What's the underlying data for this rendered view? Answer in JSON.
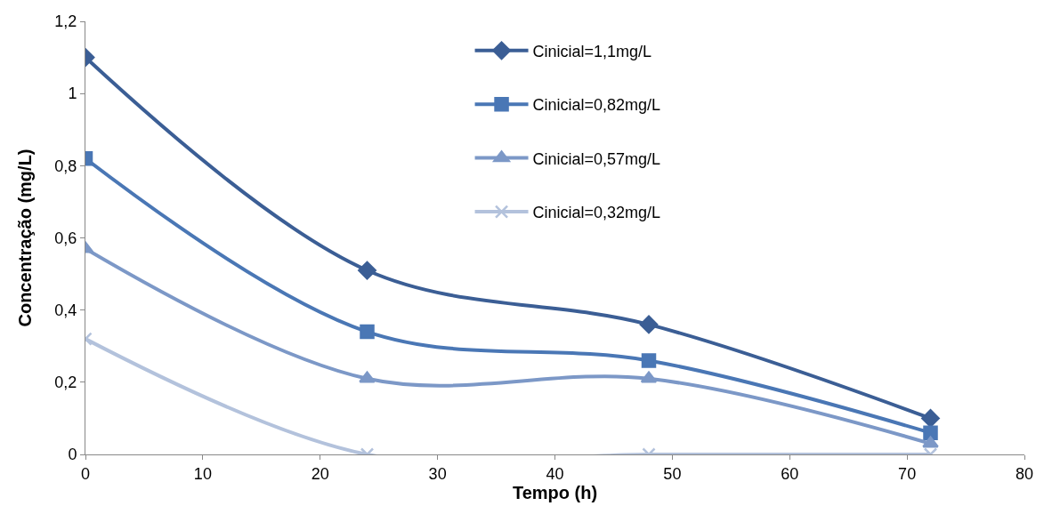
{
  "chart_data": {
    "type": "line",
    "xlabel": "Tempo (h)",
    "ylabel": "Concentração (mg/L)",
    "x": [
      0,
      24,
      48,
      72
    ],
    "series": [
      {
        "name": "Cinicial=1,1mg/L",
        "color": "#3b5e95",
        "marker": "diamond",
        "values": [
          1.1,
          0.51,
          0.36,
          0.1
        ]
      },
      {
        "name": "Cinicial=0,82mg/L",
        "color": "#4a77b5",
        "marker": "square",
        "values": [
          0.82,
          0.34,
          0.26,
          0.06
        ]
      },
      {
        "name": "Cinicial=0,57mg/L",
        "color": "#7c98c7",
        "marker": "triangle",
        "values": [
          0.57,
          0.21,
          0.21,
          0.03
        ]
      },
      {
        "name": "Cinicial=0,32mg/L",
        "color": "#b3c2dc",
        "marker": "cross",
        "values": [
          0.32,
          0,
          0,
          0
        ]
      }
    ],
    "xlim": [
      0,
      80
    ],
    "xticks": [
      0,
      10,
      20,
      30,
      40,
      50,
      60,
      70,
      80
    ],
    "ylim": [
      0,
      1.2
    ],
    "yticks": [
      {
        "value": 0,
        "label": "0"
      },
      {
        "value": 0.2,
        "label": "0,2"
      },
      {
        "value": 0.4,
        "label": "0,4"
      },
      {
        "value": 0.6,
        "label": "0,6"
      },
      {
        "value": 0.8,
        "label": "0,8"
      },
      {
        "value": 1,
        "label": "1"
      },
      {
        "value": 1.2,
        "label": "1,2"
      }
    ],
    "legend": "top right"
  }
}
